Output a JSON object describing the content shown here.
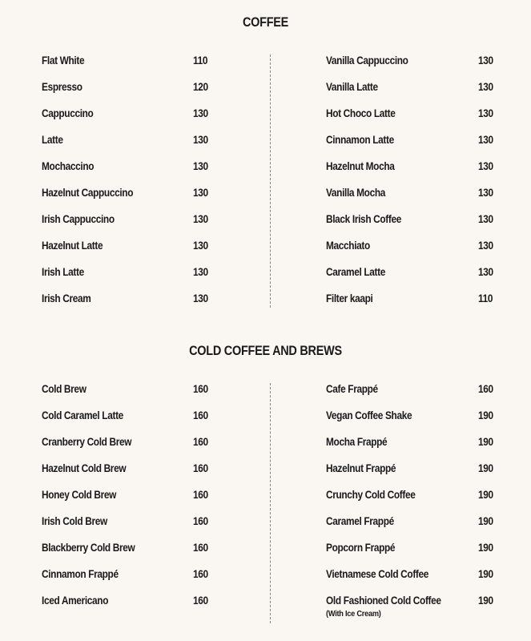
{
  "sections": [
    {
      "title": "COFFEE",
      "left": [
        {
          "name": "Flat White",
          "price": "110"
        },
        {
          "name": "Espresso",
          "price": "120"
        },
        {
          "name": "Cappuccino",
          "price": "130"
        },
        {
          "name": "Latte",
          "price": "130"
        },
        {
          "name": "Mochaccino",
          "price": "130"
        },
        {
          "name": "Hazelnut Cappuccino",
          "price": "130"
        },
        {
          "name": "Irish Cappuccino",
          "price": "130"
        },
        {
          "name": "Hazelnut Latte",
          "price": "130"
        },
        {
          "name": "Irish Latte",
          "price": "130"
        },
        {
          "name": "Irish Cream",
          "price": "130"
        }
      ],
      "right": [
        {
          "name": "Vanilla Cappuccino",
          "price": "130"
        },
        {
          "name": "Vanilla Latte",
          "price": "130"
        },
        {
          "name": "Hot Choco Latte",
          "price": "130"
        },
        {
          "name": "Cinnamon Latte",
          "price": "130"
        },
        {
          "name": "Hazelnut Mocha",
          "price": "130"
        },
        {
          "name": "Vanilla Mocha",
          "price": "130"
        },
        {
          "name": "Black Irish Coffee",
          "price": "130"
        },
        {
          "name": "Macchiato",
          "price": "130"
        },
        {
          "name": "Caramel Latte",
          "price": "130"
        },
        {
          "name": "Filter kaapi",
          "price": "110"
        }
      ]
    },
    {
      "title": "COLD COFFEE AND BREWS",
      "left": [
        {
          "name": "Cold Brew",
          "price": "160"
        },
        {
          "name": "Cold Caramel Latte",
          "price": "160"
        },
        {
          "name": "Cranberry Cold Brew",
          "price": "160"
        },
        {
          "name": "Hazelnut Cold Brew",
          "price": "160"
        },
        {
          "name": "Honey Cold Brew",
          "price": "160"
        },
        {
          "name": "Irish Cold Brew",
          "price": "160"
        },
        {
          "name": "Blackberry Cold Brew",
          "price": "160"
        },
        {
          "name": "Cinnamon Frappé",
          "price": "160"
        },
        {
          "name": "Iced Americano",
          "price": "160"
        }
      ],
      "right": [
        {
          "name": "Cafe Frappé",
          "price": "160"
        },
        {
          "name": "Vegan Coffee Shake",
          "price": "190"
        },
        {
          "name": "Mocha Frappé",
          "price": "190"
        },
        {
          "name": "Hazelnut Frappé",
          "price": "190"
        },
        {
          "name": "Crunchy Cold Coffee",
          "price": "190"
        },
        {
          "name": "Caramel Frappé",
          "price": "190"
        },
        {
          "name": "Popcorn Frappé",
          "price": "190"
        },
        {
          "name": "Vietnamese Cold Coffee",
          "price": "190"
        },
        {
          "name": "Old Fashioned Cold Coffee",
          "price": "190",
          "note": "(With Ice Cream)"
        }
      ]
    }
  ]
}
